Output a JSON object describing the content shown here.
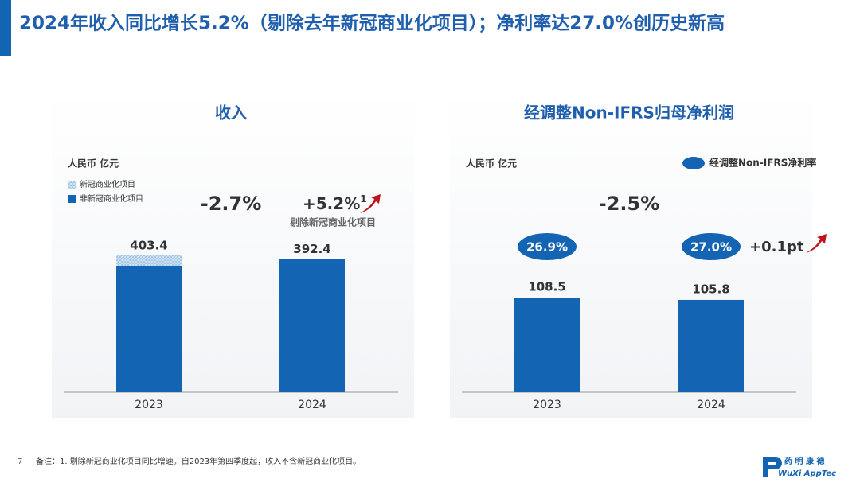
{
  "title": "2024年收入同比增长5.2%（剔除去年新冠商业化项目）；净利率达27.0%创历史新高",
  "footnote": {
    "page": "7",
    "text": "备注：1. 剔除新冠商业化项目同比增速。自2023年第四季度起，收入不含新冠商业化项目。"
  },
  "logo": {
    "cn": "药 明 康 德",
    "en": "WuXi AppTec"
  },
  "chart_data": [
    {
      "type": "stacked_bar",
      "title": "收入",
      "unit": "人民币 亿元",
      "categories": [
        "2023",
        "2024"
      ],
      "series": [
        {
          "name": "非新冠商业化项目",
          "color": "#1464b4",
          "values": [
            373.0,
            392.4
          ]
        },
        {
          "name": "新冠商业化项目",
          "color": "#a9cde9",
          "values": [
            30.4,
            0
          ]
        }
      ],
      "totals": [
        403.4,
        392.4
      ],
      "growth": "-2.7%",
      "adjusted_growth": {
        "text": "+5.2%",
        "note_mark": "1",
        "caption": "剔除新冠商业化项目"
      }
    },
    {
      "type": "bar",
      "title": "经调整Non-IFRS归母净利润",
      "unit": "人民币 亿元",
      "categories": [
        "2023",
        "2024"
      ],
      "values": [
        108.5,
        105.8
      ],
      "color": "#1464b4",
      "margin": {
        "name": "经调整Non-IFRS净利率",
        "values": [
          26.9,
          27.0
        ],
        "value_labels": [
          "26.9%",
          "27.0%"
        ]
      },
      "growth": "-2.5%",
      "margin_change": "+0.1pt"
    }
  ]
}
